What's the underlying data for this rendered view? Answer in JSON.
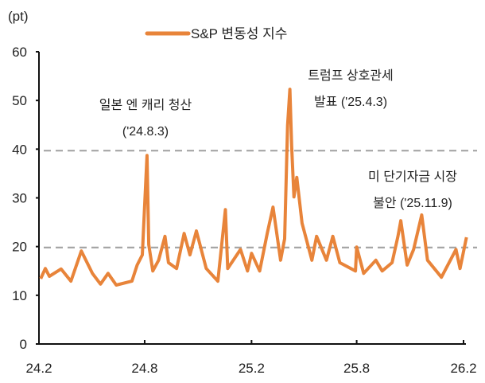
{
  "chart_data": {
    "type": "line",
    "ylabel": "(pt)",
    "ylim": [
      0,
      60
    ],
    "yticks": [
      "0",
      "10",
      "20",
      "30",
      "40",
      "50",
      "60"
    ],
    "xlim": [
      "2024-02-01",
      "2026-02-01"
    ],
    "xticks": [
      {
        "label": "24.2",
        "date": "2024-02-01"
      },
      {
        "label": "24.8",
        "date": "2024-08-01"
      },
      {
        "label": "25.2",
        "date": "2025-02-01"
      },
      {
        "label": "25.8",
        "date": "2025-08-01"
      },
      {
        "label": "26.2",
        "date": "2026-02-01"
      }
    ],
    "grid": false,
    "legend_position": "top-center",
    "reference_lines": [
      {
        "y": 19.8,
        "style": "dashed",
        "color": "#a6a6a6"
      },
      {
        "y": 39.7,
        "style": "dashed",
        "color": "#a6a6a6"
      }
    ],
    "series": [
      {
        "name": "S&P 변동성 지수",
        "color": "#e8843a",
        "points": [
          [
            "2024-02-04",
            13.4
          ],
          [
            "2024-02-12",
            15.5
          ],
          [
            "2024-02-19",
            13.9
          ],
          [
            "2024-03-10",
            15.4
          ],
          [
            "2024-03-27",
            12.9
          ],
          [
            "2024-04-14",
            19.1
          ],
          [
            "2024-05-03",
            14.5
          ],
          [
            "2024-05-17",
            12.3
          ],
          [
            "2024-05-30",
            14.5
          ],
          [
            "2024-06-13",
            12.1
          ],
          [
            "2024-07-10",
            12.9
          ],
          [
            "2024-07-19",
            16.2
          ],
          [
            "2024-07-28",
            18.3
          ],
          [
            "2024-08-05",
            38.7
          ],
          [
            "2024-08-08",
            20.4
          ],
          [
            "2024-08-15",
            15.0
          ],
          [
            "2024-08-25",
            17.2
          ],
          [
            "2024-09-05",
            22.1
          ],
          [
            "2024-09-11",
            16.7
          ],
          [
            "2024-09-25",
            15.5
          ],
          [
            "2024-10-08",
            22.7
          ],
          [
            "2024-10-18",
            18.3
          ],
          [
            "2024-10-29",
            23.2
          ],
          [
            "2024-11-15",
            15.5
          ],
          [
            "2024-12-05",
            12.9
          ],
          [
            "2024-12-18",
            27.6
          ],
          [
            "2024-12-22",
            15.5
          ],
          [
            "2025-01-13",
            19.4
          ],
          [
            "2025-01-25",
            15.0
          ],
          [
            "2025-02-01",
            18.6
          ],
          [
            "2025-02-15",
            15.0
          ],
          [
            "2025-02-28",
            22.7
          ],
          [
            "2025-03-10",
            28.1
          ],
          [
            "2025-03-23",
            17.2
          ],
          [
            "2025-03-30",
            21.6
          ],
          [
            "2025-04-04",
            44.9
          ],
          [
            "2025-04-08",
            52.3
          ],
          [
            "2025-04-11",
            40.7
          ],
          [
            "2025-04-15",
            30.2
          ],
          [
            "2025-04-20",
            34.2
          ],
          [
            "2025-04-29",
            24.8
          ],
          [
            "2025-05-16",
            17.2
          ],
          [
            "2025-05-24",
            22.1
          ],
          [
            "2025-06-10",
            17.2
          ],
          [
            "2025-06-21",
            22.1
          ],
          [
            "2025-07-03",
            16.7
          ],
          [
            "2025-07-30",
            15.0
          ],
          [
            "2025-08-01",
            19.9
          ],
          [
            "2025-08-13",
            14.5
          ],
          [
            "2025-09-03",
            17.2
          ],
          [
            "2025-09-14",
            15.0
          ],
          [
            "2025-10-01",
            16.7
          ],
          [
            "2025-10-11",
            22.1
          ],
          [
            "2025-10-16",
            25.3
          ],
          [
            "2025-10-27",
            16.2
          ],
          [
            "2025-11-07",
            19.4
          ],
          [
            "2025-11-21",
            26.5
          ],
          [
            "2025-12-01",
            17.2
          ],
          [
            "2025-12-25",
            13.7
          ],
          [
            "2026-01-19",
            19.4
          ],
          [
            "2026-01-26",
            15.5
          ],
          [
            "2026-02-06",
            21.9
          ]
        ]
      }
    ],
    "annotations": [
      {
        "line1": "일본 엔 캐리 청산",
        "line2": "('24.8.3)"
      },
      {
        "line1": "트럼프 상호관세",
        "line2": "발표 ('25.4.3)"
      },
      {
        "line1": "미 단기자금 시장",
        "line2": "불안 ('25.11.9)"
      }
    ]
  }
}
